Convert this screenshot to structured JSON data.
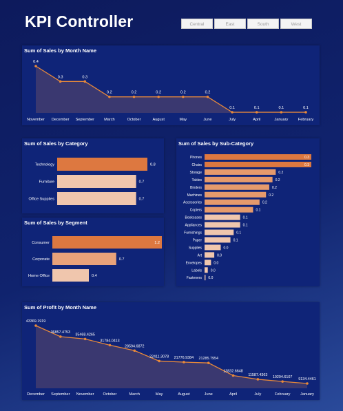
{
  "header": {
    "title": "KPI Controller"
  },
  "slicers": [
    "Central",
    "East",
    "South",
    "West"
  ],
  "colors": {
    "bg": "#0d1a5c",
    "panel": "#0f2478",
    "line": "#e8893a",
    "bar_dark": "#dd7840",
    "bar_mid": "#e8a27a",
    "bar_light": "#f0c6ad"
  },
  "charts": {
    "sales_month": {
      "title": "Sum of Sales by Month Name"
    },
    "sales_category": {
      "title": "Sum of Sales by Category"
    },
    "sales_segment": {
      "title": "Sum of Sales by Segment"
    },
    "sales_subcategory": {
      "title": "Sum of Sales by Sub-Category"
    },
    "profit_month": {
      "title": "Sum of Profit by Month Name"
    }
  },
  "chart_data": [
    {
      "type": "area",
      "title": "Sum of Sales by Month Name",
      "categories": [
        "November",
        "December",
        "September",
        "March",
        "October",
        "August",
        "May",
        "June",
        "July",
        "April",
        "January",
        "February"
      ],
      "values": [
        0.4,
        0.3,
        0.3,
        0.2,
        0.2,
        0.2,
        0.2,
        0.2,
        0.1,
        0.1,
        0.1,
        0.1
      ],
      "labels": [
        "0.4",
        "0.3",
        "0.3",
        "0.2",
        "0.2",
        "0.2",
        "0.2",
        "0.2",
        "0.1",
        "0.1",
        "0.1",
        "0.1"
      ]
    },
    {
      "type": "bar",
      "title": "Sum of Sales by Category",
      "categories": [
        "Technology",
        "Furniture",
        "Office Supplies"
      ],
      "values": [
        0.8,
        0.7,
        0.7
      ],
      "labels": [
        "0.8",
        "0.7",
        "0.7"
      ]
    },
    {
      "type": "bar",
      "title": "Sum of Sales by Segment",
      "categories": [
        "Consumer",
        "Corporate",
        "Home Office"
      ],
      "values": [
        1.2,
        0.7,
        0.4
      ],
      "labels": [
        "1.2",
        "0.7",
        "0.4"
      ]
    },
    {
      "type": "bar",
      "title": "Sum of Sales by Sub-Category",
      "categories": [
        "Phones",
        "Chairs",
        "Storage",
        "Tables",
        "Binders",
        "Machines",
        "Accessories",
        "Copiers",
        "Bookcases",
        "Appliances",
        "Furnishings",
        "Paper",
        "Supplies",
        "Art",
        "Envelopes",
        "Labels",
        "Fasteners"
      ],
      "values": [
        0.33,
        0.33,
        0.22,
        0.21,
        0.2,
        0.19,
        0.17,
        0.15,
        0.11,
        0.11,
        0.09,
        0.08,
        0.05,
        0.03,
        0.02,
        0.01,
        0.003
      ],
      "labels": [
        "0.3",
        "0.3",
        "0.2",
        "0.2",
        "0.2",
        "0.2",
        "0.2",
        "0.1",
        "0.1",
        "0.1",
        "0.1",
        "0.1",
        "0.0",
        "0.0",
        "0.0",
        "0.0",
        "0.0"
      ]
    },
    {
      "type": "area",
      "title": "Sum of Profit by Month Name",
      "categories": [
        "December",
        "September",
        "November",
        "October",
        "March",
        "May",
        "August",
        "June",
        "April",
        "July",
        "February",
        "January"
      ],
      "values": [
        43369.1919,
        36857.4753,
        35468.4265,
        31784.0413,
        28594.6872,
        22411.3078,
        21776.9384,
        21285.7954,
        13832.6648,
        11587.4363,
        10294.6107,
        9134.4461
      ],
      "labels": [
        "43369.1919",
        "36857.4753",
        "35468.4265",
        "31784.0413",
        "28594.6872",
        "22411.3078",
        "21776.9384",
        "21285.7954",
        "13832.6648",
        "11587.4363",
        "10294.6107",
        "9134.4461"
      ]
    }
  ]
}
